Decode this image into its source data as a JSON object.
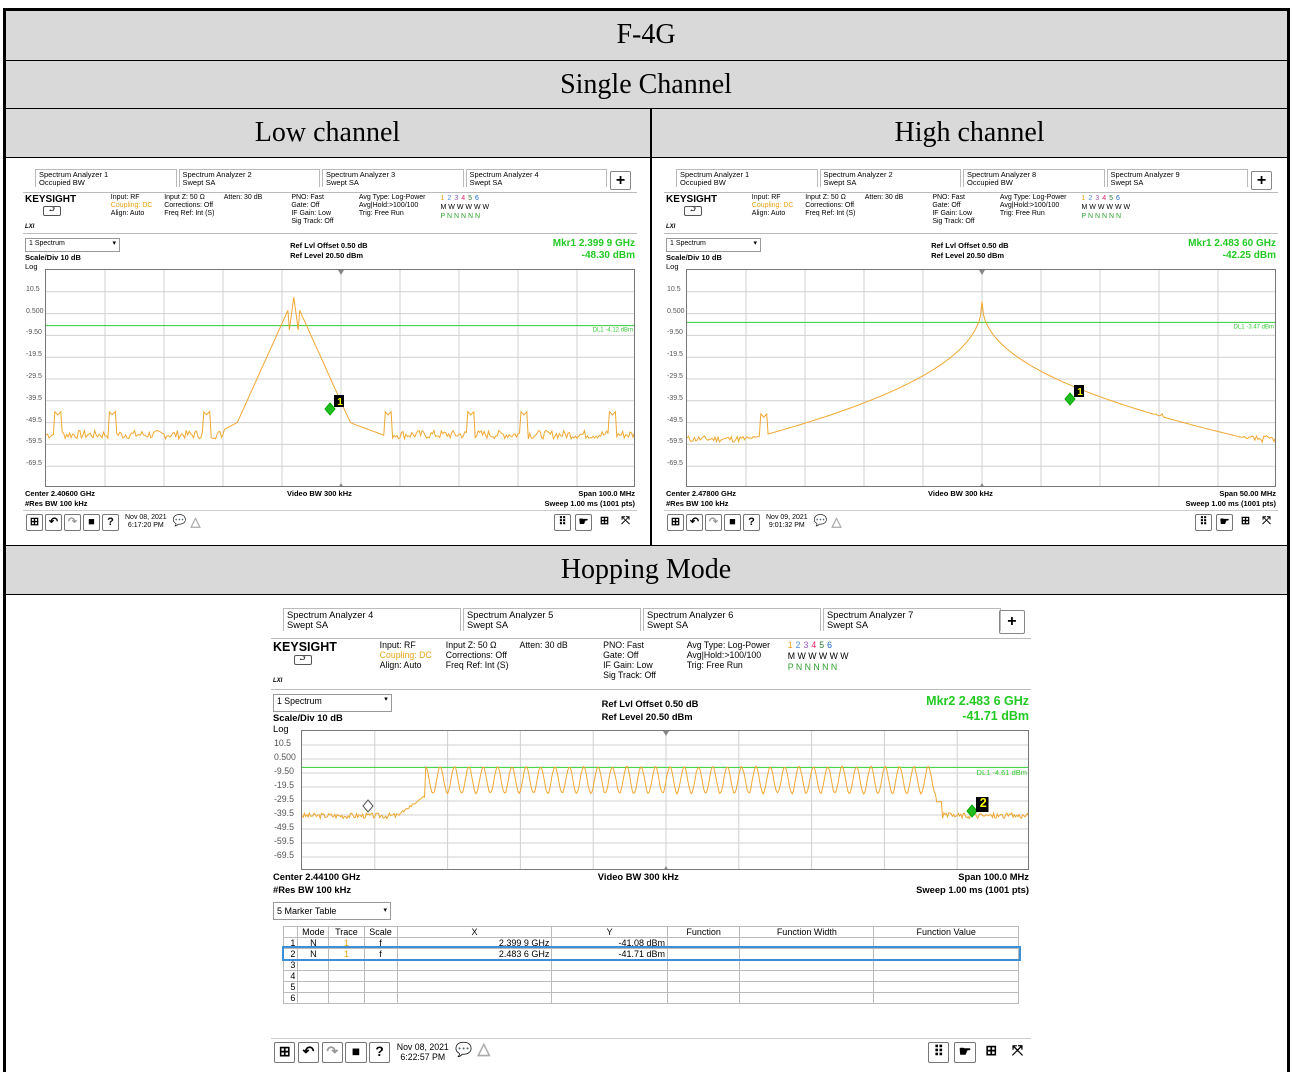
{
  "document": {
    "title": "F-4G",
    "subtitle": "Single Channel",
    "low_label": "Low channel",
    "high_label": "High channel",
    "hopping_label": "Hopping Mode"
  },
  "low": {
    "tabs": [
      [
        "Spectrum Analyzer 1",
        "Occupied BW"
      ],
      [
        "Spectrum Analyzer 2",
        "Swept SA"
      ],
      [
        "Spectrum Analyzer 3",
        "Swept SA"
      ],
      [
        "Spectrum Analyzer 4",
        "Swept SA"
      ]
    ],
    "brand": "KEYSIGHT",
    "lxi": "LXI",
    "info": {
      "c1": [
        "Input: RF",
        "Coupling: DC",
        "Align: Auto"
      ],
      "c2": [
        "Input Z: 50 Ω",
        "Corrections: Off",
        "Freq Ref: Int (S)"
      ],
      "c3": [
        "Atten: 30 dB"
      ],
      "c4": [
        "PNO: Fast",
        "Gate: Off",
        "IF Gain: Low",
        "Sig Track: Off"
      ],
      "c5": [
        "Avg Type: Log-Power",
        "Avg|Hold:>100/100",
        "Trig: Free Run"
      ],
      "trace": [
        "1",
        "2",
        "3",
        "4",
        "5",
        "6"
      ],
      "trace_m": "M W W W W W",
      "trace_p": "P N N N N N"
    },
    "view": "1 Spectrum",
    "scale": "Scale/Div 10 dB",
    "log": "Log",
    "ref_offset": "Ref Lvl Offset 0.50 dB",
    "ref_level": "Ref Level 20.50 dBm",
    "mkr_freq": "Mkr1  2.399 9 GHz",
    "mkr_amp": "-48.30 dBm",
    "yticks": [
      "10.5",
      "0.500",
      "-9.50",
      "-19.5",
      "-29.5",
      "-39.5",
      "-49.5",
      "-59.5",
      "-69.5"
    ],
    "dl": "DL1 -4.12 dBm",
    "marker": "1",
    "center": "Center 2.40600 GHz",
    "rbw": "#Res BW 100 kHz",
    "vbw": "Video BW 300 kHz",
    "span": "Span 100.0 MHz",
    "sweep": "Sweep 1.00 ms (1001 pts)",
    "date": "Nov 08, 2021",
    "time": "6:17:20 PM"
  },
  "high": {
    "tabs": [
      [
        "Spectrum Analyzer 1",
        "Occupied BW"
      ],
      [
        "Spectrum Analyzer 2",
        "Swept SA"
      ],
      [
        "Spectrum Analyzer 8",
        "Occupied BW"
      ],
      [
        "Spectrum Analyzer 9",
        "Swept SA"
      ]
    ],
    "brand": "KEYSIGHT",
    "lxi": "LXI",
    "info": {
      "c1": [
        "Input: RF",
        "Coupling: DC",
        "Align: Auto"
      ],
      "c2": [
        "Input Z: 50 Ω",
        "Corrections: Off",
        "Freq Ref: Int (S)"
      ],
      "c3": [
        "Atten: 30 dB"
      ],
      "c4": [
        "PNO: Fast",
        "Gate: Off",
        "IF Gain: Low",
        "Sig Track: Off"
      ],
      "c5": [
        "Avg Type: Log-Power",
        "Avg|Hold:>100/100",
        "Trig: Free Run"
      ],
      "trace": [
        "1",
        "2",
        "3",
        "4",
        "5",
        "6"
      ],
      "trace_m": "M W W W W W",
      "trace_p": "P N N N N N"
    },
    "view": "1 Spectrum",
    "scale": "Scale/Div 10 dB",
    "log": "Log",
    "ref_offset": "Ref Lvl Offset 0.50 dB",
    "ref_level": "Ref Level 20.50 dBm",
    "mkr_freq": "Mkr1  2.483 60 GHz",
    "mkr_amp": "-42.25 dBm",
    "yticks": [
      "10.5",
      "0.500",
      "-9.50",
      "-19.5",
      "-29.5",
      "-39.5",
      "-49.5",
      "-59.5",
      "-69.5"
    ],
    "dl": "DL1 -3.47 dBm",
    "marker": "1",
    "center": "Center 2.47800 GHz",
    "rbw": "#Res BW 100 kHz",
    "vbw": "Video BW 300 kHz",
    "span": "Span 50.00 MHz",
    "sweep": "Sweep 1.00 ms (1001 pts)",
    "date": "Nov 09, 2021",
    "time": "9:01:32 PM"
  },
  "hop": {
    "tabs": [
      [
        "Spectrum Analyzer 4",
        "Swept SA"
      ],
      [
        "Spectrum Analyzer 5",
        "Swept SA"
      ],
      [
        "Spectrum Analyzer 6",
        "Swept SA"
      ],
      [
        "Spectrum Analyzer 7",
        "Swept SA"
      ]
    ],
    "brand": "KEYSIGHT",
    "lxi": "LXI",
    "info": {
      "c1": [
        "Input: RF",
        "Coupling: DC",
        "Align: Auto"
      ],
      "c2": [
        "Input Z: 50 Ω",
        "Corrections: Off",
        "Freq Ref: Int (S)"
      ],
      "c3": [
        "Atten: 30 dB"
      ],
      "c4": [
        "PNO: Fast",
        "Gate: Off",
        "IF Gain: Low",
        "Sig Track: Off"
      ],
      "c5": [
        "Avg Type: Log-Power",
        "Avg|Hold:>100/100",
        "Trig: Free Run"
      ],
      "trace": [
        "1",
        "2",
        "3",
        "4",
        "5",
        "6"
      ],
      "trace_m": "M W W W W W",
      "trace_p": "P N N N N N"
    },
    "view": "1 Spectrum",
    "scale": "Scale/Div 10 dB",
    "log": "Log",
    "ref_offset": "Ref Lvl Offset 0.50 dB",
    "ref_level": "Ref Level 20.50 dBm",
    "mkr_freq": "Mkr2  2.483 6 GHz",
    "mkr_amp": "-41.71 dBm",
    "yticks": [
      "10.5",
      "0.500",
      "-9.50",
      "-19.5",
      "-29.5",
      "-39.5",
      "-49.5",
      "-59.5",
      "-69.5"
    ],
    "dl": "DL1 -4.61 dBm",
    "marker": "2",
    "center": "Center 2.44100 GHz",
    "rbw": "#Res BW 100 kHz",
    "vbw": "Video BW 300 kHz",
    "span": "Span 100.0 MHz",
    "sweep": "Sweep 1.00 ms (1001 pts)",
    "date": "Nov 08, 2021",
    "time": "6:22:57 PM",
    "table_view": "5 Marker Table",
    "table_headers": [
      "",
      "Mode",
      "Trace",
      "Scale",
      "X",
      "Y",
      "Function",
      "Function Width",
      "Function Value"
    ],
    "table_rows": [
      [
        "1",
        "N",
        "1",
        "f",
        "2.399 9 GHz",
        "-41.08 dBm",
        "",
        "",
        ""
      ],
      [
        "2",
        "N",
        "1",
        "f",
        "2.483 6 GHz",
        "-41.71 dBm",
        "",
        "",
        ""
      ],
      [
        "3",
        "",
        "",
        "",
        "",
        "",
        "",
        "",
        ""
      ],
      [
        "4",
        "",
        "",
        "",
        "",
        "",
        "",
        "",
        ""
      ],
      [
        "5",
        "",
        "",
        "",
        "",
        "",
        "",
        "",
        ""
      ],
      [
        "6",
        "",
        "",
        "",
        "",
        "",
        "",
        "",
        ""
      ]
    ]
  },
  "colors": {
    "trace": "#f0a830",
    "dl": "#33cc33",
    "marker": "#22bb22"
  }
}
